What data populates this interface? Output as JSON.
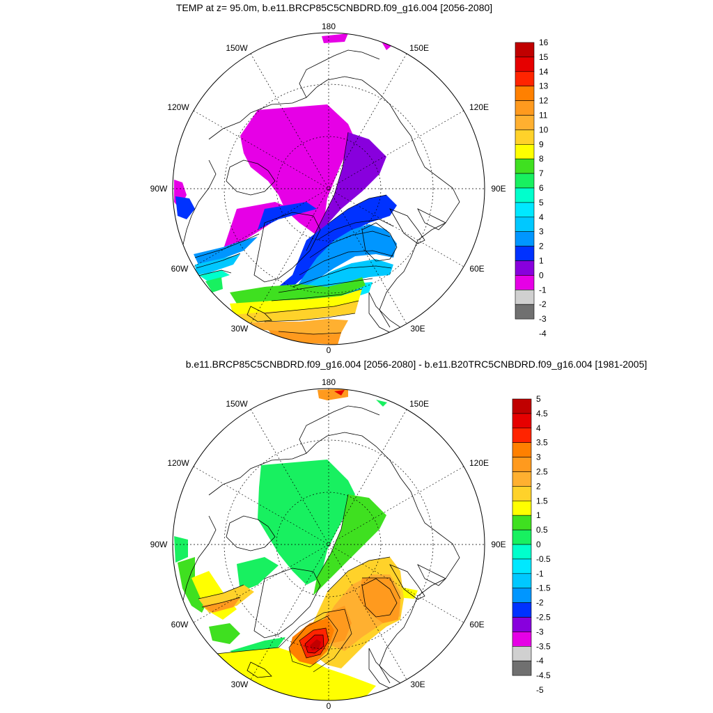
{
  "panel1": {
    "title": "TEMP at z=  95.0m, b.e11.BRCP85C5CNBDRD.f09_g16.004 [2056-2080]",
    "colorbar": {
      "labels": [
        "16",
        "15",
        "14",
        "13",
        "12",
        "11",
        "10",
        "9",
        "8",
        "7",
        "6",
        "5",
        "4",
        "3",
        "2",
        "1",
        "0",
        "-1",
        "-2",
        "-3",
        "-4"
      ],
      "colors": [
        "#c00000",
        "#e60000",
        "#ff2400",
        "#ff8000",
        "#ff9a1e",
        "#ffb030",
        "#ffd22a",
        "#ffff00",
        "#3fe020",
        "#18f060",
        "#00ffcc",
        "#00e8ff",
        "#00c8ff",
        "#0096ff",
        "#0032ff",
        "#8800dd",
        "#e600e6",
        "#d0d0d0",
        "#707070"
      ]
    }
  },
  "panel2": {
    "title": "b.e11.BRCP85C5CNBDRD.f09_g16.004 [2056-2080] - b.e11.B20TRC5CNBDRD.f09_g16.004 [1981-2005]",
    "colorbar": {
      "labels": [
        "5",
        "4.5",
        "4",
        "3.5",
        "3",
        "2.5",
        "2",
        "1.5",
        "1",
        "0.5",
        "0",
        "-0.5",
        "-1",
        "-1.5",
        "-2",
        "-2.5",
        "-3",
        "-3.5",
        "-4",
        "-4.5",
        "-5"
      ],
      "colors": [
        "#c00000",
        "#e60000",
        "#ff2400",
        "#ff8000",
        "#ff9a1e",
        "#ffb030",
        "#ffd22a",
        "#ffff00",
        "#3fe020",
        "#18f060",
        "#00ffcc",
        "#00e8ff",
        "#00c8ff",
        "#0096ff",
        "#0032ff",
        "#8800dd",
        "#e600e6",
        "#d0d0d0",
        "#707070"
      ]
    }
  },
  "grid_labels": {
    "lon_180": "180",
    "lon_150w": "150W",
    "lon_150e": "150E",
    "lon_120w": "120W",
    "lon_120e": "120E",
    "lon_90w": "90W",
    "lon_90e": "90E",
    "lon_60w": "60W",
    "lon_60e": "60E",
    "lon_30w": "30W",
    "lon_30e": "30E",
    "lon_0": "0"
  }
}
